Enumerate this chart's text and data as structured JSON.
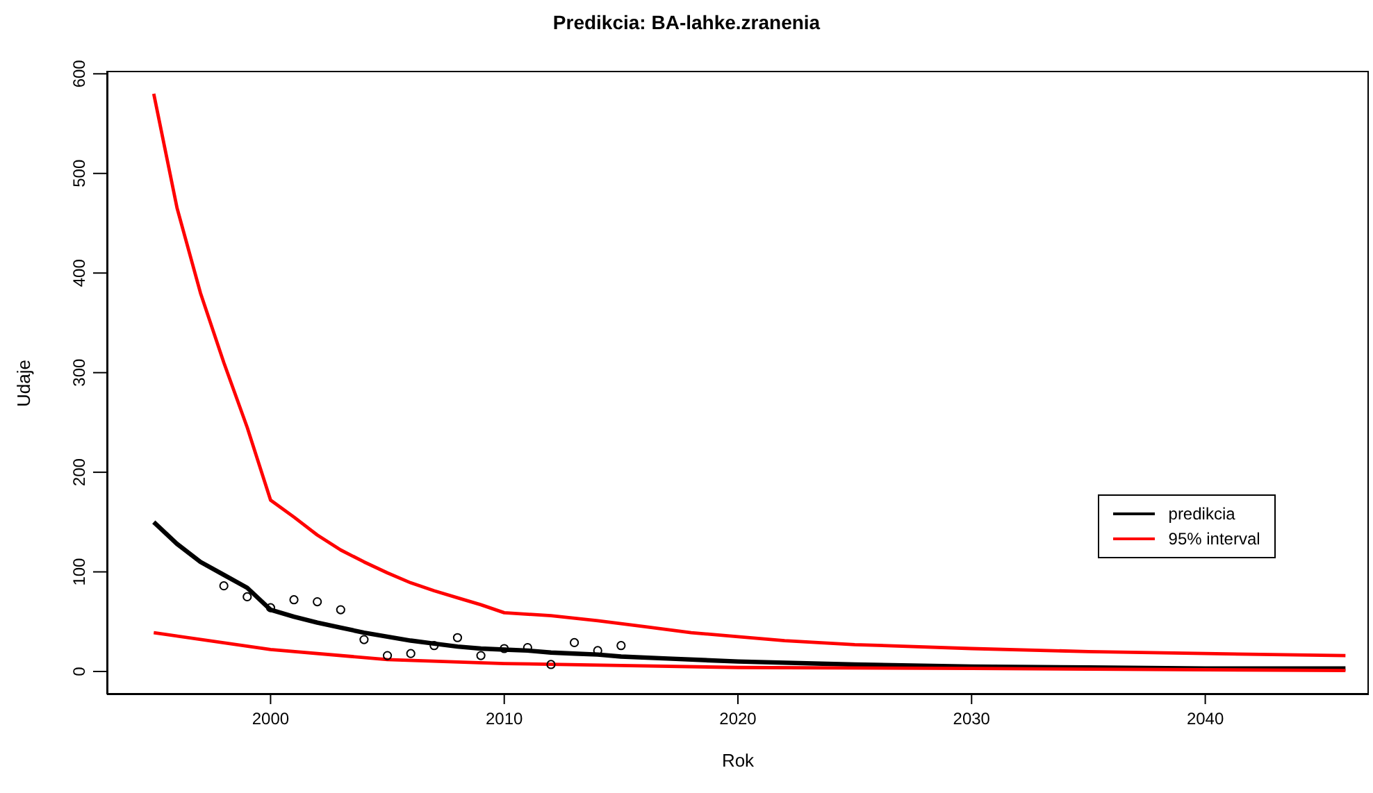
{
  "chart_data": {
    "type": "line",
    "title": "Predikcia: BA-lahke.zranenia",
    "xlabel": "Rok",
    "ylabel": "Udaje",
    "xlim": [
      1993,
      2047
    ],
    "xticks": [
      2000,
      2010,
      2020,
      2030,
      2040
    ],
    "ylim": [
      -23,
      603
    ],
    "yticks": [
      0,
      100,
      200,
      300,
      400,
      500,
      600
    ],
    "grid": false,
    "legend": "right",
    "marker": "none",
    "line_style": "solid",
    "series": [
      {
        "type": "scatter",
        "marker": "circle",
        "color": "#000000",
        "x": [
          1998,
          1999,
          2000,
          2001,
          2002,
          2003,
          2004,
          2005,
          2006,
          2007,
          2008,
          2009,
          2010,
          2011,
          2012,
          2013,
          2014,
          2015
        ],
        "values": [
          86,
          75,
          64,
          72,
          70,
          62,
          32,
          16,
          18,
          26,
          34,
          16,
          23,
          24,
          7,
          29,
          21,
          26
        ]
      },
      {
        "name": "predikcia",
        "color": "#000000",
        "x": [
          1995,
          1996,
          1997,
          1998,
          1999,
          2000,
          2001,
          2002,
          2003,
          2004,
          2005,
          2006,
          2007,
          2008,
          2009,
          2010,
          2011,
          2012,
          2013,
          2014,
          2015,
          2017,
          2020,
          2025,
          2030,
          2035,
          2040,
          2046
        ],
        "values": [
          150,
          128,
          110,
          97,
          84,
          62,
          55,
          49,
          44,
          39,
          35,
          31,
          28,
          25,
          23,
          22,
          21,
          19,
          18,
          17,
          15,
          13,
          10,
          7,
          5,
          4,
          3,
          3
        ]
      },
      {
        "name": "95% interval",
        "color": "#ff0000",
        "x": [
          1995,
          1996,
          1997,
          1998,
          1999,
          2000,
          2001,
          2002,
          2003,
          2004,
          2005,
          2006,
          2007,
          2008,
          2009,
          2010,
          2012,
          2014,
          2016,
          2018,
          2020,
          2022,
          2025,
          2030,
          2035,
          2040,
          2046
        ],
        "values": [
          580,
          465,
          380,
          310,
          245,
          172,
          155,
          137,
          122,
          110,
          99,
          89,
          81,
          74,
          67,
          59,
          56,
          51,
          45,
          39,
          35,
          31,
          27,
          23,
          20,
          18,
          16
        ]
      },
      {
        "color": "#ff0000",
        "x": [
          1995,
          2000,
          2005,
          2010,
          2015,
          2020,
          2030,
          2046
        ],
        "values": [
          39,
          22,
          12,
          8,
          6,
          4,
          3,
          1
        ]
      }
    ]
  }
}
